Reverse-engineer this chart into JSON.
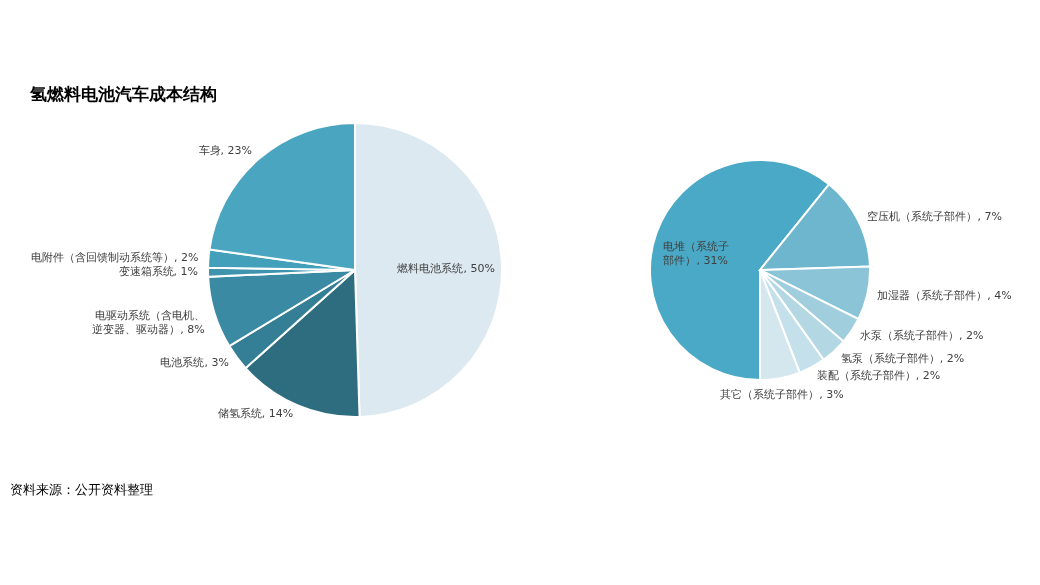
{
  "chart_data": [
    {
      "type": "pie",
      "title": "氢燃料电池汽车成本结构",
      "categories": [
        "燃料电池系统",
        "储氢系统",
        "电池系统",
        "电驱动系统（含电机、逆变器、驱动器）",
        "变速箱系统",
        "电附件（含回馈制动系统等）",
        "车身"
      ],
      "values": [
        50,
        14,
        3,
        8,
        1,
        2,
        23
      ],
      "value_labels": [
        "50%",
        "14%",
        "3%",
        "8%",
        "1%",
        "2%",
        "23%"
      ],
      "colors": [
        "#dce9f1",
        "#2e6d80",
        "#357f96",
        "#3a8aa3",
        "#3e93ad",
        "#43a0bb",
        "#4aa5c1"
      ],
      "annotations": [
        "资料来源：公开资料整理"
      ]
    },
    {
      "type": "pie",
      "categories": [
        "电堆（系统子部件）",
        "空压机（系统子部件）",
        "加湿器（系统子部件）",
        "水泵（系统子部件）",
        "氢泵（系统子部件）",
        "装配（系统子部件）",
        "其它（系统子部件）"
      ],
      "values": [
        31,
        7,
        4,
        2,
        2,
        2,
        3
      ],
      "value_labels": [
        "31%",
        "7%",
        "4%",
        "2%",
        "2%",
        "2%",
        "3%"
      ],
      "colors": [
        "#4aa9c6",
        "#6db6cd",
        "#8bc4d6",
        "#a0cedd",
        "#b3d8e4",
        "#c4e0ea",
        "#d4e7ef"
      ]
    }
  ]
}
